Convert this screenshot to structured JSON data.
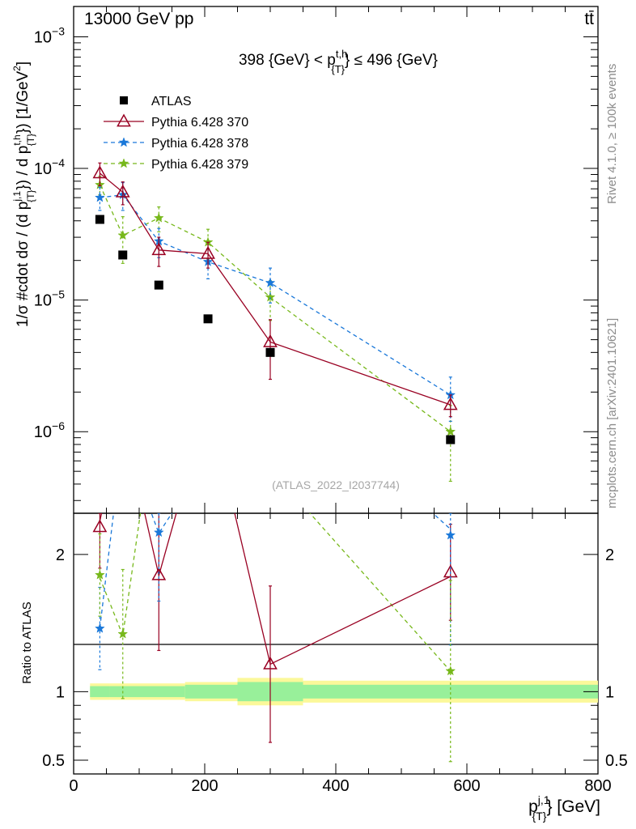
{
  "header": {
    "left": "13000 GeV pp",
    "right": "tt̄"
  },
  "plot_title_main": "398 {GeV} < p",
  "plot_title_sup": "t,h",
  "plot_title_sub": "{T}",
  "plot_title_end": "} ≤ 496 {GeV}",
  "y_label": "1/σ #cdot dσ / (d p^{j,1}_{T}) / d p^{t,h}_{T}) [1/GeV^2]",
  "y_label_parts": {
    "a": "1/σ #cdot dσ / (d p",
    "a_sup": "j,1",
    "a_sub": "{T}",
    "b": "}) / d p",
    "b_sup": "t,h",
    "b_sub": "{T}",
    "c": "}) [1/GeV",
    "c_sup": "2",
    "d": "]"
  },
  "ratio_ylabel": "Ratio to ATLAS",
  "x_label_main": "p",
  "x_label_sup": "j,1",
  "x_label_sub": "{T}",
  "x_label_end": "} [GeV]",
  "watermark": "(ATLAS_2022_I2037744)",
  "side_text_top": "Rivet 4.1.0, ≥ 100k events",
  "side_text_bottom": "mcplots.cern.ch [arXiv:2401.10621]",
  "legend": [
    {
      "label": "ATLAS",
      "color": "#000000",
      "marker": "square",
      "dashed": false
    },
    {
      "label": "Pythia 6.428 370",
      "color": "#990022",
      "marker": "triangle",
      "dashed": false
    },
    {
      "label": "Pythia 6.428 378",
      "color": "#1a78d9",
      "marker": "star",
      "dashed": true
    },
    {
      "label": "Pythia 6.428 379",
      "color": "#77b81b",
      "marker": "star",
      "dashed": true
    }
  ],
  "chart_data": {
    "type": "scatter",
    "xlim": [
      0,
      800
    ],
    "x_ticks": [
      {
        "value": 0,
        "label": "0"
      },
      {
        "value": 200,
        "label": "200"
      },
      {
        "value": 400,
        "label": "400"
      },
      {
        "value": 600,
        "label": "600"
      },
      {
        "value": 800,
        "label": "800"
      }
    ],
    "main_ylim": [
      2.4e-07,
      0.0017
    ],
    "main_y_ticks": [
      {
        "value": 0.001,
        "label_base": "10",
        "label_exp": "−3"
      },
      {
        "value": 0.0001,
        "label_base": "10",
        "label_exp": "−4"
      },
      {
        "value": 1e-05,
        "label_base": "10",
        "label_exp": "−5"
      },
      {
        "value": 1e-06,
        "label_base": "10",
        "label_exp": "−6"
      }
    ],
    "ratio_ylim": [
      0.4,
      2.3
    ],
    "ratio_y_ticks": [
      {
        "value": 0.5,
        "label": "0.5"
      },
      {
        "value": 1,
        "label": "1"
      },
      {
        "value": 2,
        "label": "2"
      }
    ],
    "data": {
      "name": "ATLAS",
      "x": [
        40,
        75,
        130,
        205,
        300,
        575
      ],
      "y": [
        4.1e-05,
        2.2e-05,
        1.3e-05,
        7.2e-06,
        4e-06,
        8.7e-07
      ],
      "band_edges": [
        25,
        55,
        100,
        170,
        250,
        350,
        800
      ],
      "band_inner": [
        0.04,
        0.04,
        0.04,
        0.05,
        0.07,
        0.05
      ],
      "band_outer": [
        0.06,
        0.06,
        0.06,
        0.07,
        0.1,
        0.08
      ]
    },
    "series": [
      {
        "name": "Pythia 6.428 370",
        "color": "#990022",
        "x": [
          40,
          75,
          130,
          205,
          300,
          575
        ],
        "y": [
          9.2e-05,
          6.6e-05,
          2.4e-05,
          2.25e-05,
          4.8e-06,
          1.6e-06
        ],
        "err": [
          1.8e-05,
          1.3e-05,
          6e-06,
          5e-06,
          2.3e-06,
          3e-07
        ]
      },
      {
        "name": "Pythia 6.428 378",
        "color": "#1a78d9",
        "x": [
          40,
          75,
          130,
          205,
          300,
          575
        ],
        "y": [
          6e-05,
          6.3e-05,
          2.8e-05,
          1.95e-05,
          1.35e-05,
          1.9e-06
        ],
        "err": [
          1.2e-05,
          1.5e-05,
          7e-06,
          5e-06,
          4e-06,
          7e-07
        ]
      },
      {
        "name": "Pythia 6.428 379",
        "color": "#77b81b",
        "x": [
          40,
          75,
          130,
          205,
          300,
          575
        ],
        "y": [
          7.5e-05,
          3.1e-05,
          4.2e-05,
          2.75e-05,
          1.05e-05,
          1e-06
        ],
        "err": [
          1.2e-05,
          1.2e-05,
          9e-06,
          7e-06,
          3.5e-06,
          5.8e-07
        ]
      }
    ],
    "ratios": [
      {
        "name": "Pythia 6.428 370",
        "x": [
          40,
          130,
          300,
          575
        ],
        "y": [
          2.2,
          1.85,
          1.2,
          1.87
        ],
        "err_lo": [
          0.3,
          0.55,
          0.57,
          0.35
        ],
        "err_hi": [
          0.3,
          0.45,
          0.57,
          0.35
        ]
      },
      {
        "name": "Pythia 6.428 378",
        "x": [
          40,
          130,
          575
        ],
        "y": [
          1.46,
          2.16,
          2.14
        ],
        "err_lo": [
          0.3,
          0.5,
          0.8
        ],
        "err_hi": [
          0.3,
          0.5,
          0.5
        ]
      },
      {
        "name": "Pythia 6.428 379",
        "x": [
          40,
          75,
          575
        ],
        "y": [
          1.85,
          1.42,
          1.15
        ],
        "err_lo": [
          0.3,
          0.47,
          0.66
        ],
        "err_hi": [
          0.3,
          0.47,
          0.66
        ]
      }
    ]
  }
}
